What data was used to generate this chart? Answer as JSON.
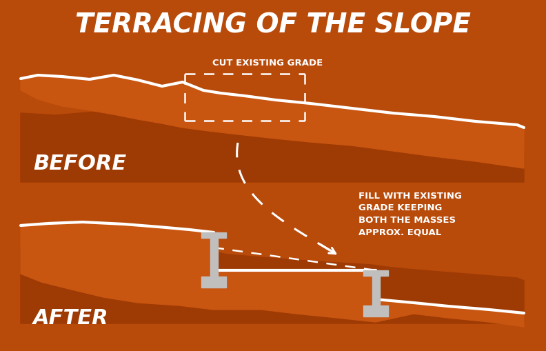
{
  "bg_color": "#b84a0a",
  "title": "TERRACING OF THE SLOPE",
  "title_color": "#ffffff",
  "title_fontsize": 28,
  "before_label": "BEFORE",
  "after_label": "AFTER",
  "label_color": "#ffffff",
  "label_fontsize": 22,
  "cut_label": "CUT EXISTING GRADE",
  "fill_label": "FILL WITH EXISTING\nGRADE KEEPING\nBOTH THE MASSES\nAPPROX. EQUAL",
  "annotation_color": "#ffffff",
  "annotation_fontsize": 9.5,
  "slope_color": "#c85510",
  "slope_shadow_color": "#9e3a04",
  "terrace_color": "#c0bfbe",
  "line_color": "#ffffff",
  "dashed_color": "#ffffff"
}
